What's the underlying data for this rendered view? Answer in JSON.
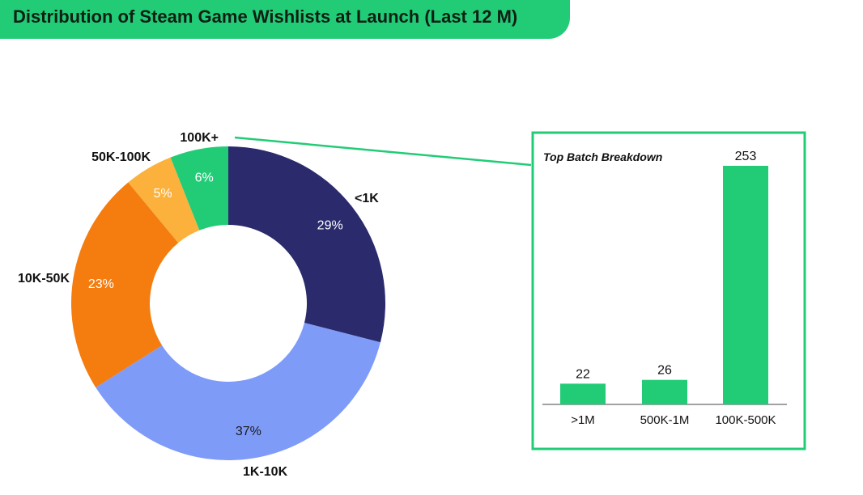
{
  "header": {
    "title": "Distribution of Steam Game Wishlists at Launch (Last 12 M)"
  },
  "colors": {
    "accent": "#22cc77"
  },
  "chart_data": [
    {
      "type": "pie",
      "donut": true,
      "categories": [
        "<1K",
        "1K-10K",
        "10K-50K",
        "50K-100K",
        "100K+"
      ],
      "values": [
        29,
        37,
        23,
        5,
        6
      ],
      "value_labels": [
        "29%",
        "37%",
        "23%",
        "5%",
        "6%"
      ],
      "colors": [
        "#2a2a6c",
        "#7f9bf8",
        "#f57c0e",
        "#fbb13c",
        "#22cc77"
      ],
      "legend": "labels beside slices"
    },
    {
      "type": "bar",
      "title": "Top Batch Breakdown",
      "categories": [
        ">1M",
        "500K-1M",
        "100K-500K"
      ],
      "values": [
        22,
        26,
        253
      ],
      "value_labels": [
        "22",
        "26",
        "253"
      ],
      "color": "#22cc77",
      "ylim": [
        0,
        253
      ],
      "grid": false
    }
  ]
}
